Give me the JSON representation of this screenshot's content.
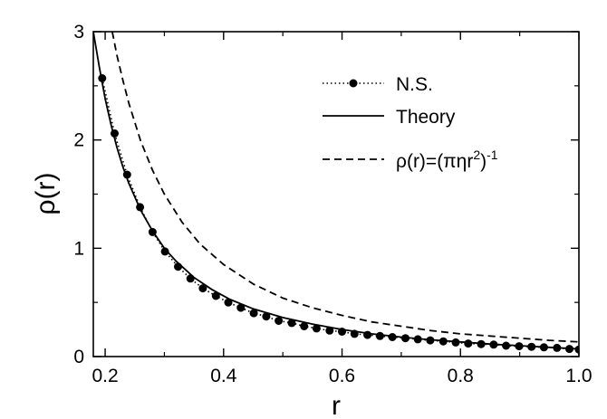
{
  "chart_data": {
    "type": "line",
    "xlabel": "r",
    "ylabel": "ρ(r)",
    "xlim": [
      0.18,
      1.0
    ],
    "ylim": [
      0,
      3
    ],
    "x_ticks": [
      "0.2",
      "0.4",
      "0.6",
      "0.8",
      "1.0"
    ],
    "y_ticks": [
      "0",
      "1",
      "2",
      "3"
    ],
    "grid": false,
    "legend_position": "top-right",
    "series": [
      {
        "name": "N.S.",
        "style": "dotted line with filled circles",
        "color": "#000000",
        "x": [
          0.195,
          0.216,
          0.237,
          0.259,
          0.28,
          0.301,
          0.323,
          0.344,
          0.365,
          0.387,
          0.408,
          0.429,
          0.451,
          0.472,
          0.493,
          0.515,
          0.536,
          0.557,
          0.579,
          0.6,
          0.621,
          0.643,
          0.664,
          0.685,
          0.707,
          0.728,
          0.749,
          0.771,
          0.792,
          0.813,
          0.835,
          0.856,
          0.877,
          0.899,
          0.92,
          0.941,
          0.963,
          0.984,
          1.0
        ],
        "y": [
          2.57,
          2.06,
          1.68,
          1.38,
          1.15,
          0.97,
          0.83,
          0.72,
          0.63,
          0.56,
          0.5,
          0.45,
          0.4,
          0.37,
          0.33,
          0.31,
          0.28,
          0.26,
          0.24,
          0.23,
          0.21,
          0.2,
          0.19,
          0.18,
          0.17,
          0.16,
          0.15,
          0.14,
          0.13,
          0.12,
          0.115,
          0.11,
          0.1,
          0.095,
          0.09,
          0.085,
          0.08,
          0.07,
          0.065
        ]
      },
      {
        "name": "Theory",
        "style": "solid",
        "color": "#000000",
        "x": [
          0.18,
          0.19,
          0.2,
          0.21,
          0.22,
          0.23,
          0.24,
          0.26,
          0.28,
          0.3,
          0.32,
          0.35,
          0.38,
          0.41,
          0.45,
          0.5,
          0.55,
          0.6,
          0.65,
          0.7,
          0.75,
          0.8,
          0.85,
          0.9,
          0.95,
          1.0
        ],
        "y": [
          3.0,
          2.68,
          2.38,
          2.14,
          1.93,
          1.75,
          1.6,
          1.35,
          1.16,
          1.0,
          0.88,
          0.73,
          0.62,
          0.53,
          0.44,
          0.36,
          0.3,
          0.25,
          0.21,
          0.18,
          0.155,
          0.135,
          0.115,
          0.1,
          0.085,
          0.07
        ]
      },
      {
        "name": "ρ(r)=(πηr²)⁻¹",
        "legend_base": "ρ(r)=(πηr",
        "legend_sup1": "2",
        "legend_mid": ")",
        "legend_sup2": "-1",
        "style": "dashed",
        "color": "#000000",
        "x": [
          0.212,
          0.22,
          0.23,
          0.24,
          0.26,
          0.28,
          0.3,
          0.33,
          0.36,
          0.4,
          0.45,
          0.5,
          0.55,
          0.6,
          0.65,
          0.7,
          0.75,
          0.8,
          0.85,
          0.9,
          0.95,
          1.0
        ],
        "y": [
          3.0,
          2.78,
          2.55,
          2.34,
          1.99,
          1.72,
          1.5,
          1.24,
          1.04,
          0.85,
          0.67,
          0.54,
          0.45,
          0.38,
          0.32,
          0.28,
          0.24,
          0.21,
          0.19,
          0.17,
          0.15,
          0.135
        ]
      }
    ]
  }
}
